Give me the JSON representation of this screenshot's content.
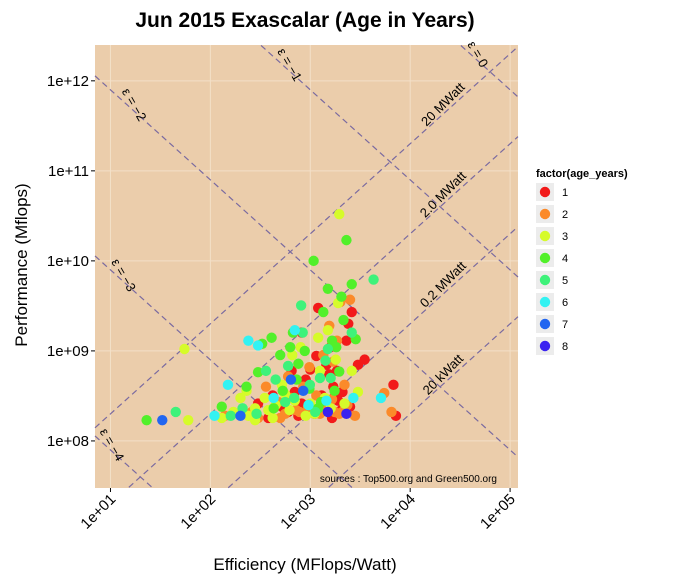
{
  "chart_data": {
    "type": "scatter",
    "title": "Jun 2015 Exascalar (Age in Years)",
    "xlabel": "Efficiency (MFlops/Watt)",
    "ylabel": "Performance (Mflops)",
    "x_scale": "log10",
    "y_scale": "log10",
    "xlim": [
      7,
      120000
    ],
    "ylim": [
      30000000,
      2500000000000
    ],
    "x_ticks": [
      "1e+01",
      "1e+02",
      "1e+03",
      "1e+04",
      "1e+05"
    ],
    "y_ticks": [
      "1e+08",
      "1e+09",
      "1e+10",
      "1e+11",
      "1e+12"
    ],
    "panel_color": "#ebcdab",
    "legend_title": "factor(age_years)",
    "legend_position": "right",
    "legend_items": [
      {
        "label": "1",
        "color": "#f21a1a"
      },
      {
        "label": "2",
        "color": "#fb8a2a"
      },
      {
        "label": "3",
        "color": "#d6fb2a"
      },
      {
        "label": "4",
        "color": "#52f02a"
      },
      {
        "label": "5",
        "color": "#3ef27a"
      },
      {
        "label": "6",
        "color": "#33f2f2"
      },
      {
        "label": "7",
        "color": "#2266f0"
      },
      {
        "label": "8",
        "color": "#3a22f0"
      }
    ],
    "power_lines": [
      {
        "label": "20 MWatt",
        "mwatts": 20000000
      },
      {
        "label": "2.0 MWatt",
        "mwatts": 2000000
      },
      {
        "label": "0.2 MWatt",
        "mwatts": 200000
      },
      {
        "label": "20 kWatt",
        "mwatts": 20000
      }
    ],
    "exascalar_lines": [
      {
        "label": "ε = 0",
        "value": 0
      },
      {
        "label": "ε = −1",
        "value": -1
      },
      {
        "label": "ε = −2",
        "value": -2
      },
      {
        "label": "ε = −3",
        "value": -3
      },
      {
        "label": "ε = −4",
        "value": -4
      }
    ],
    "source_note": "sources : Top500.org and Green500.org",
    "series": [
      {
        "name": "1",
        "points": [
          [
            650,
            600000000
          ],
          [
            820,
            1600000000
          ],
          [
            1000,
            620000000
          ],
          [
            1200,
            3000000000
          ],
          [
            1450,
            700000000
          ],
          [
            1700,
            400000000
          ],
          [
            2100,
            350000000
          ],
          [
            2400,
            2000000000
          ],
          [
            3000,
            700000000
          ],
          [
            3500,
            800000000
          ],
          [
            6800,
            420000000
          ],
          [
            7200,
            190000000
          ],
          [
            2600,
            2700000000
          ],
          [
            1900,
            280000000
          ],
          [
            1100,
            200000000
          ],
          [
            820,
            260000000
          ],
          [
            600,
            210000000
          ],
          [
            380,
            180000000
          ],
          [
            300,
            260000000
          ],
          [
            1550,
            550000000
          ],
          [
            1300,
            320000000
          ],
          [
            900,
            480000000
          ],
          [
            700,
            350000000
          ],
          [
            1350,
            230000000
          ],
          [
            1750,
            310000000
          ],
          [
            2050,
            220000000
          ],
          [
            2300,
            1300000000
          ],
          [
            520,
            240000000
          ],
          [
            1600,
            1100000000
          ],
          [
            1150,
            880000000
          ],
          [
            420,
            320000000
          ],
          [
            760,
            190000000
          ],
          [
            1650,
            180000000
          ],
          [
            2500,
            240000000
          ],
          [
            1850,
            600000000
          ]
        ]
      },
      {
        "name": "2",
        "points": [
          [
            140,
            190000000
          ],
          [
            210,
            200000000
          ],
          [
            300,
            180000000
          ],
          [
            400,
            220000000
          ],
          [
            480,
            270000000
          ],
          [
            560,
            200000000
          ],
          [
            640,
            300000000
          ],
          [
            720,
            220000000
          ],
          [
            850,
            400000000
          ],
          [
            950,
            240000000
          ],
          [
            1050,
            220000000
          ],
          [
            1150,
            320000000
          ],
          [
            1250,
            200000000
          ],
          [
            1350,
            900000000
          ],
          [
            1450,
            250000000
          ],
          [
            1550,
            1900000000
          ],
          [
            1650,
            290000000
          ],
          [
            1750,
            210000000
          ],
          [
            2000,
            3500000000
          ],
          [
            2200,
            420000000
          ],
          [
            5500,
            340000000
          ],
          [
            6500,
            210000000
          ],
          [
            2500,
            3700000000
          ],
          [
            1850,
            1300000000
          ],
          [
            600,
            520000000
          ],
          [
            360,
            400000000
          ],
          [
            260,
            210000000
          ],
          [
            2800,
            190000000
          ],
          [
            2100,
            210000000
          ],
          [
            1950,
            200000000
          ],
          [
            780,
            210000000
          ],
          [
            500,
            180000000
          ],
          [
            980,
            660000000
          ],
          [
            1700,
            760000000
          ],
          [
            2350,
            250000000
          ]
        ]
      },
      {
        "name": "3",
        "points": [
          [
            60,
            170000000
          ],
          [
            55,
            1050000000
          ],
          [
            130,
            180000000
          ],
          [
            170,
            210000000
          ],
          [
            200,
            300000000
          ],
          [
            230,
            360000000
          ],
          [
            280,
            230000000
          ],
          [
            350,
            300000000
          ],
          [
            420,
            180000000
          ],
          [
            520,
            420000000
          ],
          [
            620,
            220000000
          ],
          [
            700,
            280000000
          ],
          [
            800,
            1100000000
          ],
          [
            900,
            190000000
          ],
          [
            1000,
            260000000
          ],
          [
            1100,
            200000000
          ],
          [
            1250,
            600000000
          ],
          [
            1400,
            300000000
          ],
          [
            1600,
            230000000
          ],
          [
            1800,
            800000000
          ],
          [
            1950,
            33000000000
          ],
          [
            2200,
            260000000
          ],
          [
            2600,
            600000000
          ],
          [
            3000,
            350000000
          ],
          [
            280,
            170000000
          ],
          [
            450,
            250000000
          ],
          [
            1500,
            1700000000
          ],
          [
            660,
            900000000
          ],
          [
            240,
            190000000
          ],
          [
            1200,
            1400000000
          ],
          [
            1900,
            3400000000
          ],
          [
            380,
            220000000
          ],
          [
            560,
            330000000
          ]
        ]
      },
      {
        "name": "4",
        "points": [
          [
            23,
            170000000
          ],
          [
            130,
            240000000
          ],
          [
            230,
            400000000
          ],
          [
            330,
            1200000000
          ],
          [
            430,
            230000000
          ],
          [
            530,
            360000000
          ],
          [
            630,
            1100000000
          ],
          [
            730,
            480000000
          ],
          [
            880,
            1000000000
          ],
          [
            980,
            380000000
          ],
          [
            1080,
            10000000000
          ],
          [
            1200,
            230000000
          ],
          [
            1500,
            4900000000
          ],
          [
            1750,
            360000000
          ],
          [
            2050,
            4000000000
          ],
          [
            2300,
            17000000000
          ],
          [
            2850,
            1350000000
          ],
          [
            1950,
            590000000
          ],
          [
            500,
            900000000
          ],
          [
            1350,
            2700000000
          ],
          [
            760,
            720000000
          ],
          [
            960,
            250000000
          ],
          [
            1650,
            1300000000
          ],
          [
            410,
            1400000000
          ],
          [
            300,
            580000000
          ],
          [
            2600,
            5500000000
          ],
          [
            670,
            1600000000
          ],
          [
            1280,
            270000000
          ],
          [
            1820,
            1100000000
          ],
          [
            2150,
            2200000000
          ]
        ]
      },
      {
        "name": "5",
        "points": [
          [
            45,
            210000000
          ],
          [
            160,
            190000000
          ],
          [
            210,
            230000000
          ],
          [
            290,
            200000000
          ],
          [
            360,
            600000000
          ],
          [
            450,
            480000000
          ],
          [
            560,
            270000000
          ],
          [
            690,
            300000000
          ],
          [
            840,
            1600000000
          ],
          [
            990,
            420000000
          ],
          [
            1250,
            500000000
          ],
          [
            1600,
            500000000
          ],
          [
            2600,
            1600000000
          ],
          [
            4300,
            6200000000
          ],
          [
            1500,
            1050000000
          ],
          [
            810,
            3200000000
          ],
          [
            1120,
            210000000
          ],
          [
            1420,
            780000000
          ],
          [
            600,
            680000000
          ]
        ]
      },
      {
        "name": "6",
        "points": [
          [
            110,
            190000000
          ],
          [
            150,
            420000000
          ],
          [
            300,
            1150000000
          ],
          [
            430,
            300000000
          ],
          [
            700,
            1700000000
          ],
          [
            960,
            250000000
          ],
          [
            1450,
            280000000
          ],
          [
            2700,
            300000000
          ],
          [
            5100,
            300000000
          ],
          [
            240,
            1300000000
          ]
        ]
      },
      {
        "name": "7",
        "points": [
          [
            33,
            170000000
          ],
          [
            200,
            190000000
          ],
          [
            640,
            480000000
          ],
          [
            850,
            360000000
          ]
        ]
      },
      {
        "name": "8",
        "points": [
          [
            2300,
            200000000
          ],
          [
            1500,
            210000000
          ]
        ]
      }
    ]
  }
}
